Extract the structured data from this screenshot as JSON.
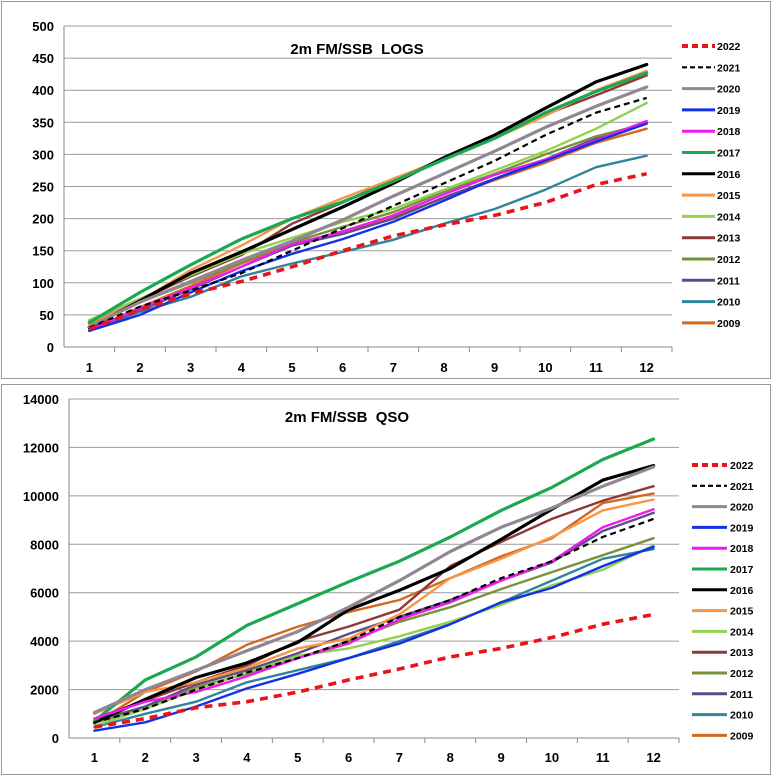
{
  "chart_data": [
    {
      "type": "line",
      "title": "2m FM/SSB  LOGS",
      "xlabel": "",
      "ylabel": "",
      "categories": [
        "1",
        "2",
        "3",
        "4",
        "5",
        "6",
        "7",
        "8",
        "9",
        "10",
        "11",
        "12"
      ],
      "yticks": [
        "0",
        "50",
        "100",
        "150",
        "200",
        "250",
        "300",
        "350",
        "400",
        "450",
        "500"
      ],
      "ylim": [
        0,
        500
      ],
      "grid": "horizontal",
      "legend": "right",
      "series": [
        {
          "name": "2022",
          "color": "#e8141b",
          "dash": "dash-bold",
          "values": [
            28,
            58,
            83,
            102,
            125,
            150,
            173,
            190,
            205,
            225,
            253,
            270
          ]
        },
        {
          "name": "2021",
          "color": "#000000",
          "dash": "dash",
          "values": [
            30,
            63,
            88,
            115,
            150,
            185,
            220,
            255,
            290,
            330,
            365,
            388
          ]
        },
        {
          "name": "2020",
          "color": "#938693",
          "dash": "solid",
          "values": [
            32,
            70,
            102,
            135,
            165,
            198,
            235,
            270,
            305,
            342,
            375,
            405
          ]
        },
        {
          "name": "2019",
          "color": "#1430e6",
          "dash": "solid",
          "values": [
            25,
            50,
            85,
            118,
            145,
            168,
            195,
            228,
            262,
            290,
            320,
            348
          ]
        },
        {
          "name": "2018",
          "color": "#f01af0",
          "dash": "solid",
          "values": [
            27,
            60,
            92,
            125,
            160,
            180,
            205,
            238,
            268,
            292,
            322,
            352
          ]
        },
        {
          "name": "2017",
          "color": "#1aa851",
          "dash": "solid",
          "values": [
            38,
            85,
            128,
            168,
            200,
            226,
            258,
            292,
            325,
            365,
            398,
            427
          ]
        },
        {
          "name": "2016",
          "color": "#000000",
          "dash": "solid",
          "values": [
            30,
            72,
            115,
            148,
            183,
            218,
            255,
            295,
            330,
            372,
            413,
            440
          ]
        },
        {
          "name": "2015",
          "color": "#f79646",
          "dash": "solid",
          "values": [
            36,
            72,
            120,
            158,
            200,
            232,
            262,
            293,
            325,
            360,
            400,
            430
          ]
        },
        {
          "name": "2014",
          "color": "#92d050",
          "dash": "solid",
          "values": [
            42,
            75,
            112,
            145,
            170,
            195,
            215,
            245,
            275,
            305,
            340,
            380
          ]
        },
        {
          "name": "2013",
          "color": "#8b3a38",
          "dash": "solid",
          "values": [
            31,
            73,
            110,
            143,
            192,
            225,
            262,
            292,
            326,
            362,
            392,
            423
          ]
        },
        {
          "name": "2012",
          "color": "#76923c",
          "dash": "solid",
          "values": [
            40,
            70,
            100,
            132,
            163,
            187,
            210,
            242,
            270,
            300,
            328,
            348
          ]
        },
        {
          "name": "2011",
          "color": "#5f4b8b",
          "dash": "solid",
          "values": [
            29,
            57,
            90,
            125,
            158,
            176,
            200,
            233,
            262,
            292,
            325,
            350
          ]
        },
        {
          "name": "2010",
          "color": "#31849b",
          "dash": "solid",
          "values": [
            25,
            55,
            78,
            110,
            130,
            148,
            167,
            192,
            215,
            245,
            280,
            298
          ]
        },
        {
          "name": "2009",
          "color": "#d2691e",
          "dash": "solid",
          "values": [
            26,
            62,
            95,
            130,
            160,
            180,
            203,
            232,
            260,
            287,
            318,
            340
          ]
        }
      ]
    },
    {
      "type": "line",
      "title": "2m FM/SSB  QSO",
      "xlabel": "",
      "ylabel": "",
      "categories": [
        "1",
        "2",
        "3",
        "4",
        "5",
        "6",
        "7",
        "8",
        "9",
        "10",
        "11",
        "12"
      ],
      "yticks": [
        "0",
        "2000",
        "4000",
        "6000",
        "8000",
        "10000",
        "12000",
        "14000"
      ],
      "ylim": [
        0,
        14000
      ],
      "grid": "horizontal",
      "legend": "right",
      "series": [
        {
          "name": "2022",
          "color": "#e8141b",
          "dash": "dash-bold",
          "values": [
            450,
            800,
            1250,
            1500,
            1900,
            2400,
            2850,
            3350,
            3700,
            4150,
            4700,
            5100
          ]
        },
        {
          "name": "2021",
          "color": "#000000",
          "dash": "dash",
          "values": [
            650,
            1200,
            2000,
            2700,
            3300,
            4000,
            5000,
            5700,
            6600,
            7300,
            8300,
            9050
          ]
        },
        {
          "name": "2020",
          "color": "#938693",
          "dash": "solid",
          "values": [
            1050,
            2000,
            2800,
            3600,
            4400,
            5400,
            6500,
            7700,
            8700,
            9500,
            10400,
            11200
          ]
        },
        {
          "name": "2019",
          "color": "#1430e6",
          "dash": "solid",
          "values": [
            300,
            650,
            1300,
            2050,
            2650,
            3300,
            3900,
            4700,
            5600,
            6200,
            7100,
            7900
          ]
        },
        {
          "name": "2018",
          "color": "#f01af0",
          "dash": "solid",
          "values": [
            800,
            1500,
            1900,
            2550,
            3300,
            3900,
            4900,
            5600,
            6500,
            7300,
            8700,
            9450
          ]
        },
        {
          "name": "2017",
          "color": "#1aa851",
          "dash": "solid",
          "values": [
            700,
            2400,
            3350,
            4650,
            5550,
            6450,
            7300,
            8300,
            9400,
            10350,
            11500,
            12350
          ]
        },
        {
          "name": "2016",
          "color": "#000000",
          "dash": "solid",
          "values": [
            650,
            1600,
            2500,
            3100,
            3950,
            5300,
            6100,
            7000,
            8200,
            9450,
            10650,
            11250
          ]
        },
        {
          "name": "2015",
          "color": "#f79646",
          "dash": "solid",
          "values": [
            1000,
            1900,
            2300,
            2900,
            3700,
            4100,
            5100,
            6600,
            7400,
            8300,
            9400,
            9850
          ]
        },
        {
          "name": "2014",
          "color": "#92d050",
          "dash": "solid",
          "values": [
            500,
            1200,
            2000,
            2700,
            3400,
            3700,
            4200,
            4800,
            5500,
            6300,
            6950,
            7950
          ]
        },
        {
          "name": "2013",
          "color": "#8b3a38",
          "dash": "solid",
          "values": [
            800,
            1550,
            2300,
            3000,
            4000,
            4600,
            5300,
            7100,
            8100,
            9050,
            9800,
            10400
          ]
        },
        {
          "name": "2012",
          "color": "#76923c",
          "dash": "solid",
          "values": [
            650,
            1200,
            2100,
            2650,
            3300,
            4000,
            4800,
            5400,
            6150,
            6850,
            7550,
            8250
          ]
        },
        {
          "name": "2011",
          "color": "#5f4b8b",
          "dash": "solid",
          "values": [
            700,
            1300,
            2200,
            2800,
            3500,
            4300,
            5000,
            5700,
            6500,
            7250,
            8550,
            9300
          ]
        },
        {
          "name": "2010",
          "color": "#31849b",
          "dash": "solid",
          "values": [
            450,
            1000,
            1500,
            2300,
            2800,
            3300,
            4000,
            4700,
            5600,
            6500,
            7400,
            7800
          ]
        },
        {
          "name": "2009",
          "color": "#d2691e",
          "dash": "solid",
          "values": [
            600,
            1900,
            2750,
            3850,
            4600,
            5200,
            5700,
            6600,
            7500,
            8250,
            9700,
            10100
          ]
        }
      ]
    }
  ]
}
